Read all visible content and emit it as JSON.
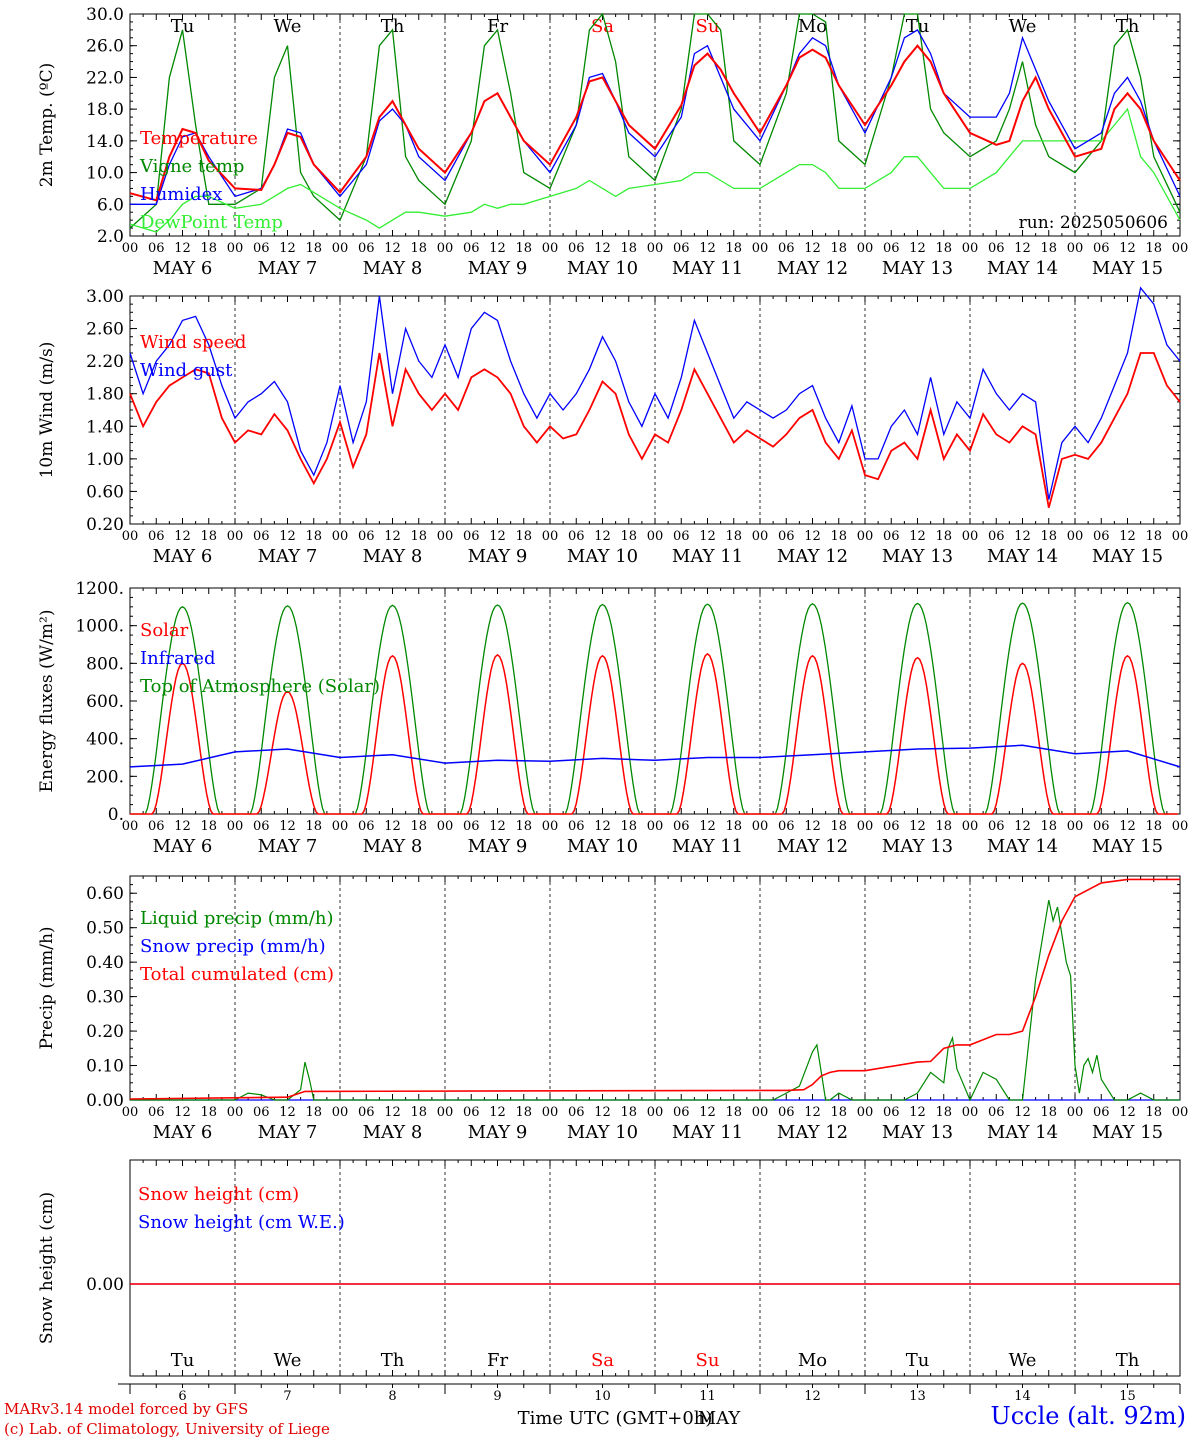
{
  "colors": {
    "red": "#ff0000",
    "green": "#008800",
    "blue": "#0000ff",
    "lime": "#33ee33",
    "grid": "#000000"
  },
  "days": {
    "weekdays": [
      "Tu",
      "We",
      "Th",
      "Fr",
      "Sa",
      "Su",
      "Mo",
      "Tu",
      "We",
      "Th"
    ],
    "weekday_colors": [
      "black",
      "black",
      "black",
      "black",
      "red",
      "red",
      "black",
      "black",
      "black",
      "black"
    ],
    "dates": [
      "MAY  6",
      "MAY  7",
      "MAY  8",
      "MAY  9",
      "MAY 10",
      "MAY 11",
      "MAY 12",
      "MAY 13",
      "MAY 14",
      "MAY 15"
    ],
    "day_numbers": [
      "6",
      "7",
      "8",
      "9",
      "10",
      "11",
      "12",
      "13",
      "14",
      "15"
    ],
    "hour_ticks": [
      "00",
      "06",
      "12",
      "18"
    ],
    "final_tick": "00"
  },
  "footer": {
    "model": "MARv3.14 model forced by GFS",
    "lab": "(c) Lab. of Climatology, University of Liege",
    "xlabel": "Time UTC (GMT+0h)",
    "month": "MAY",
    "station": "Uccle (alt. 92m)"
  },
  "chart_data": [
    {
      "type": "line",
      "ylabel": "2m Temp. (ºC)",
      "ylim": [
        2,
        30
      ],
      "yticks": [
        "2.0",
        "6.0",
        "10.0",
        "14.0",
        "18.0",
        "22.0",
        "26.0",
        "30.0"
      ],
      "annotation": "run: 2025050606",
      "x_unit": "hours since MAY 6 00 UTC",
      "x": [
        0,
        6,
        9,
        12,
        15,
        18,
        24,
        30,
        33,
        36,
        39,
        42,
        48,
        54,
        57,
        60,
        63,
        66,
        72,
        78,
        81,
        84,
        87,
        90,
        96,
        102,
        105,
        108,
        111,
        114,
        120,
        126,
        129,
        132,
        135,
        138,
        144,
        150,
        153,
        156,
        159,
        162,
        168,
        174,
        177,
        180,
        183,
        186,
        192,
        198,
        201,
        204,
        207,
        210,
        216,
        222,
        225,
        228,
        231,
        234,
        240
      ],
      "series": [
        {
          "name": "Temperature",
          "color": "red",
          "values": [
            7.4,
            6.5,
            12,
            15.5,
            15,
            11.5,
            8,
            7.8,
            11,
            15,
            14.5,
            11,
            7.5,
            12,
            17,
            19,
            16,
            13,
            10,
            15,
            19,
            20,
            17,
            14,
            11,
            17,
            21.5,
            22,
            19,
            16,
            13,
            18.5,
            23.5,
            25,
            23,
            20,
            15,
            21,
            24.5,
            25.5,
            24.5,
            21,
            16,
            21,
            24,
            26,
            24,
            20,
            15,
            13.5,
            14,
            19,
            22,
            18,
            12,
            13,
            18,
            20,
            18,
            14,
            9
          ]
        },
        {
          "name": "Vigne temp",
          "color": "green",
          "values": [
            3,
            6,
            22,
            28,
            16,
            6,
            6,
            8,
            22,
            26,
            10,
            7,
            4,
            12,
            26,
            28,
            12,
            9,
            6,
            14,
            26,
            28,
            20,
            10,
            8,
            16,
            28,
            30,
            24,
            12,
            9,
            18,
            30,
            30,
            28,
            14,
            11,
            20,
            30,
            30,
            29,
            14,
            11,
            22,
            30,
            30,
            18,
            15,
            12,
            14,
            18,
            24,
            16,
            12,
            10,
            14,
            26,
            28,
            22,
            12,
            5
          ]
        },
        {
          "name": "Humidex",
          "color": "blue",
          "values": [
            6,
            6,
            11,
            14.5,
            15,
            12,
            7,
            8,
            11,
            15.5,
            15,
            11,
            7,
            11,
            16.5,
            18,
            16,
            12,
            9,
            15,
            19,
            20,
            17,
            14,
            10,
            16,
            22,
            22.5,
            19,
            15,
            12,
            17,
            25,
            26,
            22,
            18,
            14,
            21,
            25,
            27,
            26,
            21,
            15,
            22,
            27,
            28,
            25,
            20,
            17,
            17,
            20,
            27,
            23,
            19,
            13,
            15,
            20,
            22,
            19,
            14,
            7
          ]
        },
        {
          "name": "DewPoint Temp",
          "color": "lime",
          "values": [
            3.5,
            2.5,
            4,
            6,
            7,
            7,
            5.5,
            6,
            7,
            8,
            8.5,
            7.5,
            5.5,
            4,
            3,
            4,
            5,
            5,
            4.5,
            5,
            6,
            5.5,
            6,
            6,
            7,
            8,
            9,
            8,
            7,
            8,
            8.5,
            9,
            10,
            10,
            9,
            8,
            8,
            10,
            11,
            11,
            10,
            8,
            8,
            10,
            12,
            12,
            10,
            8,
            8,
            10,
            12,
            14,
            14,
            14,
            14,
            14,
            16,
            18,
            12,
            10,
            4
          ]
        }
      ]
    },
    {
      "type": "line",
      "ylabel": "10m Wind (m/s)",
      "ylim": [
        0.2,
        3.0
      ],
      "yticks": [
        "0.20",
        "0.60",
        "1.00",
        "1.40",
        "1.80",
        "2.20",
        "2.60",
        "3.00"
      ],
      "x_unit": "hours since MAY 6 00 UTC",
      "x": [
        0,
        3,
        6,
        9,
        12,
        15,
        18,
        21,
        24,
        27,
        30,
        33,
        36,
        39,
        42,
        45,
        48,
        51,
        54,
        57,
        60,
        63,
        66,
        69,
        72,
        75,
        78,
        81,
        84,
        87,
        90,
        93,
        96,
        99,
        102,
        105,
        108,
        111,
        114,
        117,
        120,
        123,
        126,
        129,
        132,
        135,
        138,
        141,
        144,
        147,
        150,
        153,
        156,
        159,
        162,
        165,
        168,
        171,
        174,
        177,
        180,
        183,
        186,
        189,
        192,
        195,
        198,
        201,
        204,
        207,
        210,
        213,
        216,
        219,
        222,
        225,
        228,
        231,
        234,
        237,
        240
      ],
      "series": [
        {
          "name": "Wind speed",
          "color": "red",
          "values": [
            1.8,
            1.4,
            1.7,
            1.9,
            2.0,
            2.1,
            2.05,
            1.5,
            1.2,
            1.35,
            1.3,
            1.55,
            1.35,
            1.0,
            0.7,
            1.0,
            1.45,
            0.9,
            1.3,
            2.3,
            1.4,
            2.1,
            1.8,
            1.6,
            1.8,
            1.6,
            2.0,
            2.1,
            2.0,
            1.8,
            1.4,
            1.2,
            1.4,
            1.25,
            1.3,
            1.6,
            1.95,
            1.8,
            1.3,
            1.0,
            1.3,
            1.2,
            1.6,
            2.1,
            1.8,
            1.5,
            1.2,
            1.35,
            1.25,
            1.15,
            1.3,
            1.5,
            1.6,
            1.2,
            1.0,
            1.35,
            0.8,
            0.75,
            1.1,
            1.2,
            1.0,
            1.6,
            1.0,
            1.3,
            1.1,
            1.55,
            1.3,
            1.2,
            1.4,
            1.3,
            0.4,
            1.0,
            1.05,
            1.0,
            1.2,
            1.5,
            1.8,
            2.3,
            2.3,
            1.9,
            1.7
          ]
        },
        {
          "name": "Wind gust",
          "color": "blue",
          "values": [
            2.3,
            1.8,
            2.2,
            2.4,
            2.7,
            2.75,
            2.4,
            1.9,
            1.5,
            1.7,
            1.8,
            1.95,
            1.7,
            1.1,
            0.8,
            1.2,
            1.9,
            1.2,
            1.7,
            3.0,
            1.8,
            2.6,
            2.2,
            2.0,
            2.4,
            2.0,
            2.6,
            2.8,
            2.7,
            2.2,
            1.8,
            1.5,
            1.8,
            1.6,
            1.8,
            2.1,
            2.5,
            2.2,
            1.7,
            1.4,
            1.8,
            1.5,
            2.0,
            2.7,
            2.3,
            1.9,
            1.5,
            1.7,
            1.6,
            1.5,
            1.6,
            1.8,
            1.9,
            1.5,
            1.2,
            1.65,
            1.0,
            1.0,
            1.4,
            1.6,
            1.3,
            2.0,
            1.3,
            1.7,
            1.5,
            2.1,
            1.8,
            1.6,
            1.8,
            1.7,
            0.5,
            1.2,
            1.4,
            1.2,
            1.5,
            1.9,
            2.3,
            3.1,
            2.9,
            2.4,
            2.2
          ]
        }
      ]
    },
    {
      "type": "line",
      "ylabel": "Energy fluxes (W/m²)",
      "ylim": [
        0,
        1200
      ],
      "yticks": [
        "0.",
        "200.",
        "400.",
        "600.",
        "800.",
        "1000.",
        "1200."
      ],
      "series": [
        {
          "name": "Solar",
          "color": "red",
          "peaks": [
            800,
            650,
            840,
            845,
            840,
            850,
            840,
            830,
            800,
            840
          ]
        },
        {
          "name": "Infrared",
          "color": "blue",
          "values_per_day": [
            250,
            330,
            300,
            270,
            280,
            285,
            300,
            330,
            350,
            320
          ],
          "final": 250
        },
        {
          "name": "Top of Atmosphere (Solar)",
          "color": "green",
          "peaks": [
            1100,
            1105,
            1108,
            1110,
            1112,
            1114,
            1116,
            1118,
            1120,
            1122
          ]
        }
      ]
    },
    {
      "type": "line",
      "ylabel": "Precip (mm/h)",
      "ylim": [
        0,
        0.65
      ],
      "yticks": [
        "0.00",
        "0.10",
        "0.20",
        "0.30",
        "0.40",
        "0.50",
        "0.60"
      ],
      "x_unit": "hours since MAY 6 00 UTC",
      "series": [
        {
          "name": "Liquid precip (mm/h)",
          "color": "green",
          "x": [
            0,
            24,
            27,
            30,
            33,
            36,
            39,
            40,
            41,
            42,
            45,
            48,
            144,
            147,
            150,
            153,
            156,
            157,
            158,
            159,
            160,
            162,
            165,
            168,
            171,
            174,
            177,
            180,
            183,
            186,
            187,
            188,
            189,
            190,
            192,
            195,
            198,
            201,
            204,
            207,
            210,
            211,
            212,
            213,
            214,
            215,
            216,
            217,
            218,
            219,
            220,
            221,
            222,
            225,
            228,
            231,
            234,
            240
          ],
          "values": [
            0,
            0,
            0.02,
            0.015,
            0,
            0,
            0.03,
            0.11,
            0.06,
            0,
            0,
            0,
            0,
            0,
            0.02,
            0.04,
            0.14,
            0.16,
            0.08,
            0,
            0,
            0.02,
            0,
            0,
            0,
            0,
            0,
            0.02,
            0.08,
            0.05,
            0.15,
            0.18,
            0.09,
            0.06,
            0,
            0.08,
            0.06,
            0,
            0,
            0.35,
            0.58,
            0.52,
            0.56,
            0.48,
            0.4,
            0.36,
            0.1,
            0.02,
            0.1,
            0.12,
            0.08,
            0.13,
            0.06,
            0,
            0,
            0.02,
            0,
            0
          ]
        },
        {
          "name": "Snow precip (mm/h)",
          "color": "blue",
          "values": "zero"
        },
        {
          "name": "Total cumulated (cm)",
          "color": "red",
          "x": [
            0,
            36,
            40,
            150,
            154,
            156,
            158,
            160,
            162,
            165,
            168,
            180,
            183,
            186,
            189,
            192,
            198,
            201,
            204,
            207,
            210,
            213,
            216,
            222,
            228,
            240
          ],
          "values": [
            0.003,
            0.008,
            0.025,
            0.028,
            0.03,
            0.045,
            0.07,
            0.08,
            0.085,
            0.085,
            0.085,
            0.11,
            0.112,
            0.15,
            0.16,
            0.16,
            0.19,
            0.19,
            0.2,
            0.3,
            0.42,
            0.52,
            0.59,
            0.63,
            0.64,
            0.64
          ]
        }
      ]
    },
    {
      "type": "line",
      "ylabel": "Snow height (cm)",
      "yticks": [
        "0.00"
      ],
      "series": [
        {
          "name": "Snow height (cm)",
          "color": "red",
          "values": "zero"
        },
        {
          "name": "Snow height (cm W.E.)",
          "color": "blue",
          "values": "zero"
        }
      ]
    }
  ]
}
